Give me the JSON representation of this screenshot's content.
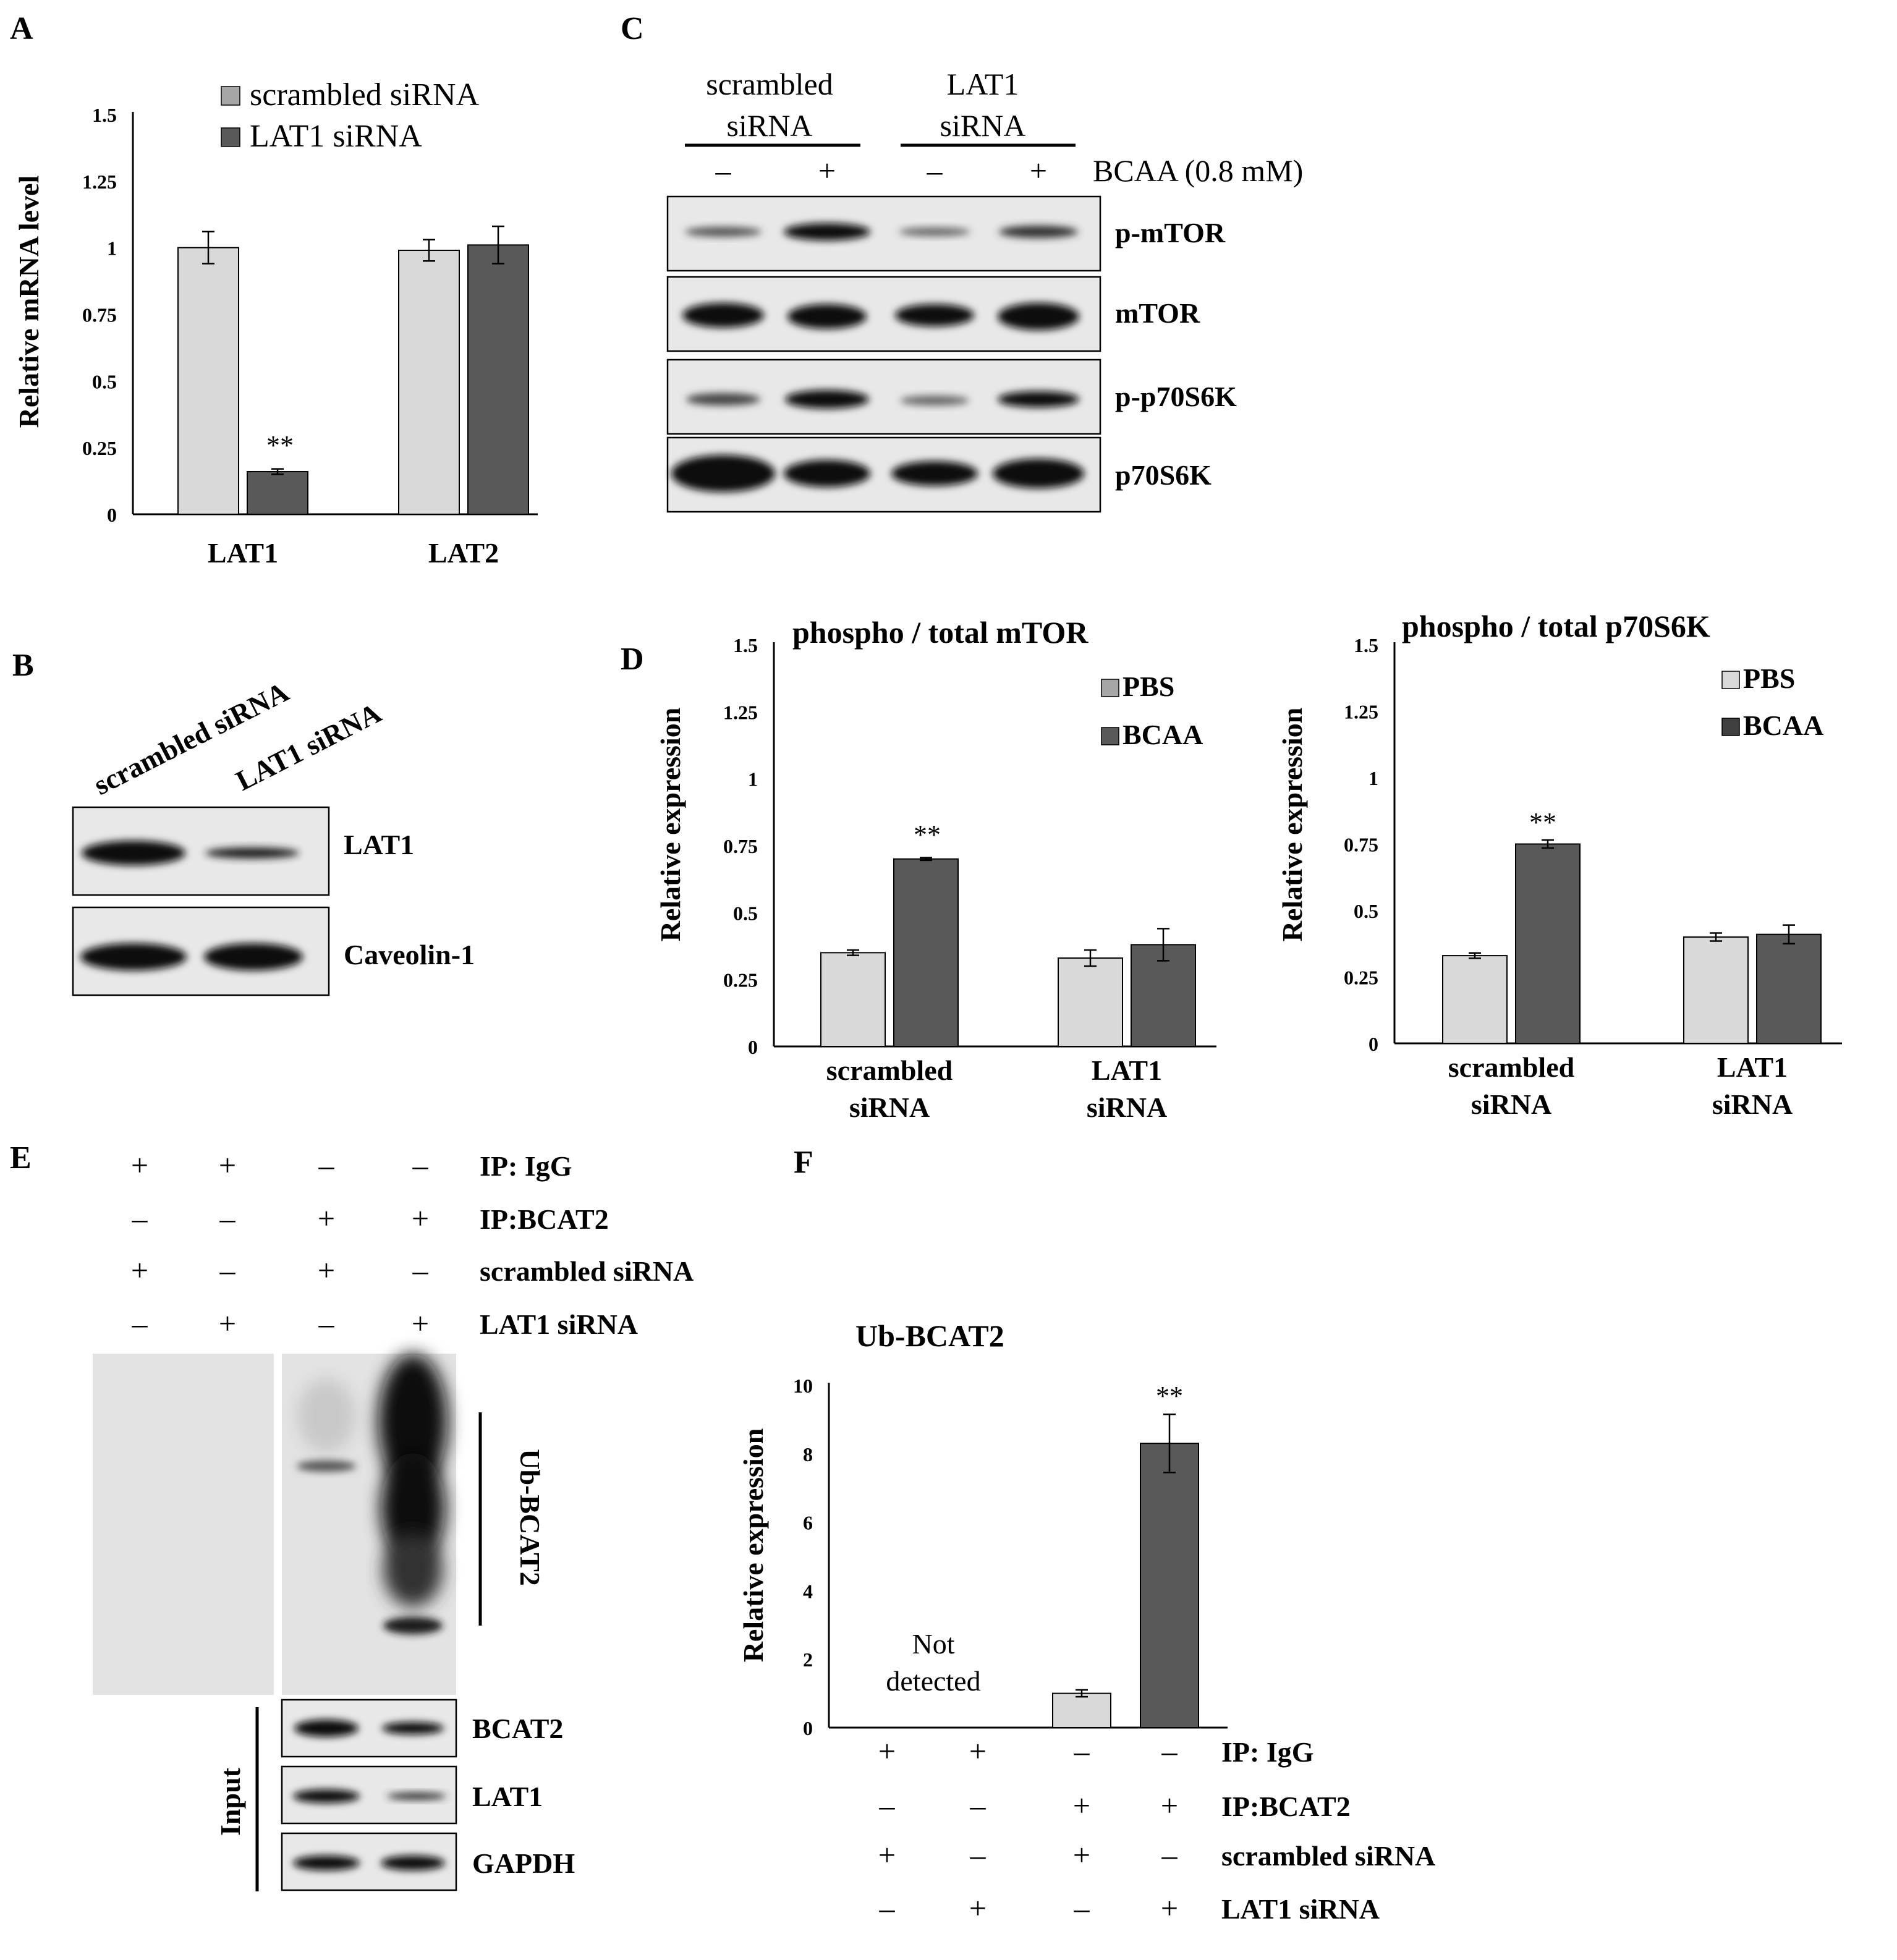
{
  "panels": {
    "A": "A",
    "B": "B",
    "C": "C",
    "D": "D",
    "E": "E",
    "F": "F"
  },
  "colors": {
    "light": "#d9d9d9",
    "dark": "#595959",
    "legend_light": "#a6a6a6",
    "axis": "#000000",
    "blot_bg": "#e6e6e6",
    "band": "#0d0d0d"
  },
  "chart_data": [
    {
      "panel": "A",
      "type": "bar",
      "categories": [
        "LAT1",
        "LAT2"
      ],
      "series": [
        {
          "name": "scrambled  siRNA",
          "values": [
            1.0,
            0.99
          ],
          "errors": [
            0.06,
            0.04
          ]
        },
        {
          "name": "LAT1 siRNA",
          "values": [
            0.16,
            1.01
          ],
          "errors": [
            0.01,
            0.07
          ]
        }
      ],
      "ylabel": "Relative mRNA level",
      "ylim": [
        0,
        1.5
      ],
      "yticks": [
        "0",
        "0.25",
        "0.5",
        "0.75",
        "1",
        "1.25",
        "1.5"
      ],
      "annotations": [
        "**"
      ],
      "legend": "top"
    },
    {
      "panel": "D-left",
      "type": "bar",
      "title": "phospho  / total mTOR",
      "categories": [
        "scrambled siRNA",
        "LAT1 siRNA"
      ],
      "series": [
        {
          "name": "PBS",
          "values": [
            0.35,
            0.33
          ],
          "errors": [
            0.01,
            0.03
          ]
        },
        {
          "name": "BCAA",
          "values": [
            0.7,
            0.38
          ],
          "errors": [
            0.005,
            0.06
          ]
        }
      ],
      "ylabel": "Relative expression",
      "ylim": [
        0,
        1.5
      ],
      "yticks": [
        "0",
        "0.25",
        "0.5",
        "0.75",
        "1",
        "1.25",
        "1.5"
      ],
      "annotations": [
        "**"
      ],
      "legend": "top-right"
    },
    {
      "panel": "D-right",
      "type": "bar",
      "title": "phospho  / total p70S6K",
      "categories": [
        "scrambled siRNA",
        "LAT1 siRNA"
      ],
      "series": [
        {
          "name": "PBS",
          "values": [
            0.33,
            0.4
          ],
          "errors": [
            0.01,
            0.015
          ]
        },
        {
          "name": "BCAA",
          "values": [
            0.75,
            0.41
          ],
          "errors": [
            0.015,
            0.035
          ]
        }
      ],
      "ylabel": "Relative expression",
      "ylim": [
        0,
        1.5
      ],
      "yticks": [
        "0",
        "0.25",
        "0.5",
        "0.75",
        "1",
        "1.25",
        "1.5"
      ],
      "annotations": [
        "**"
      ],
      "legend": "top-right"
    },
    {
      "panel": "F",
      "type": "bar",
      "title": "Ub-BCAT2",
      "categories": [
        "1",
        "2",
        "3",
        "4"
      ],
      "values": [
        null,
        null,
        1.0,
        8.3
      ],
      "errors": [
        null,
        null,
        0.1,
        0.85
      ],
      "ylabel": "Relative expression",
      "ylim": [
        0,
        10
      ],
      "yticks": [
        "0",
        "2",
        "4",
        "6",
        "8",
        "10"
      ],
      "annotations": [
        "**",
        "Not",
        "detected"
      ],
      "conditions": {
        "rows": [
          "IP: IgG",
          "IP:BCAT2",
          "scrambled siRNA",
          "LAT1 siRNA"
        ],
        "signs": [
          [
            "+",
            "+",
            "–",
            "–"
          ],
          [
            "–",
            "–",
            "+",
            "+"
          ],
          [
            "+",
            "–",
            "+",
            "–"
          ],
          [
            "–",
            "+",
            "–",
            "+"
          ]
        ]
      }
    }
  ],
  "panelB": {
    "lanes": [
      "scrambled siRNA",
      "LAT1 siRNA"
    ],
    "blots": [
      "LAT1",
      "Caveolin-1"
    ]
  },
  "panelC": {
    "groups": [
      "scrambled",
      "siRNA",
      "LAT1",
      "siRNA"
    ],
    "treatment_signs": [
      "–",
      "+",
      "–",
      "+"
    ],
    "treatment_label": "BCAA (0.8 mM)",
    "blots": [
      "p-mTOR",
      "mTOR",
      "p-p70S6K",
      "p70S6K"
    ]
  },
  "panelE": {
    "rows": [
      "IP: IgG",
      "IP:BCAT2",
      "scrambled siRNA",
      "LAT1 siRNA"
    ],
    "signs": [
      [
        "+",
        "+",
        "–",
        "–"
      ],
      [
        "–",
        "–",
        "+",
        "+"
      ],
      [
        "+",
        "–",
        "+",
        "–"
      ],
      [
        "–",
        "+",
        "–",
        "+"
      ]
    ],
    "ub_label": "Ub-BCAT2",
    "input_label": "Input",
    "input_blots": [
      "BCAT2",
      "LAT1",
      "GAPDH"
    ]
  }
}
